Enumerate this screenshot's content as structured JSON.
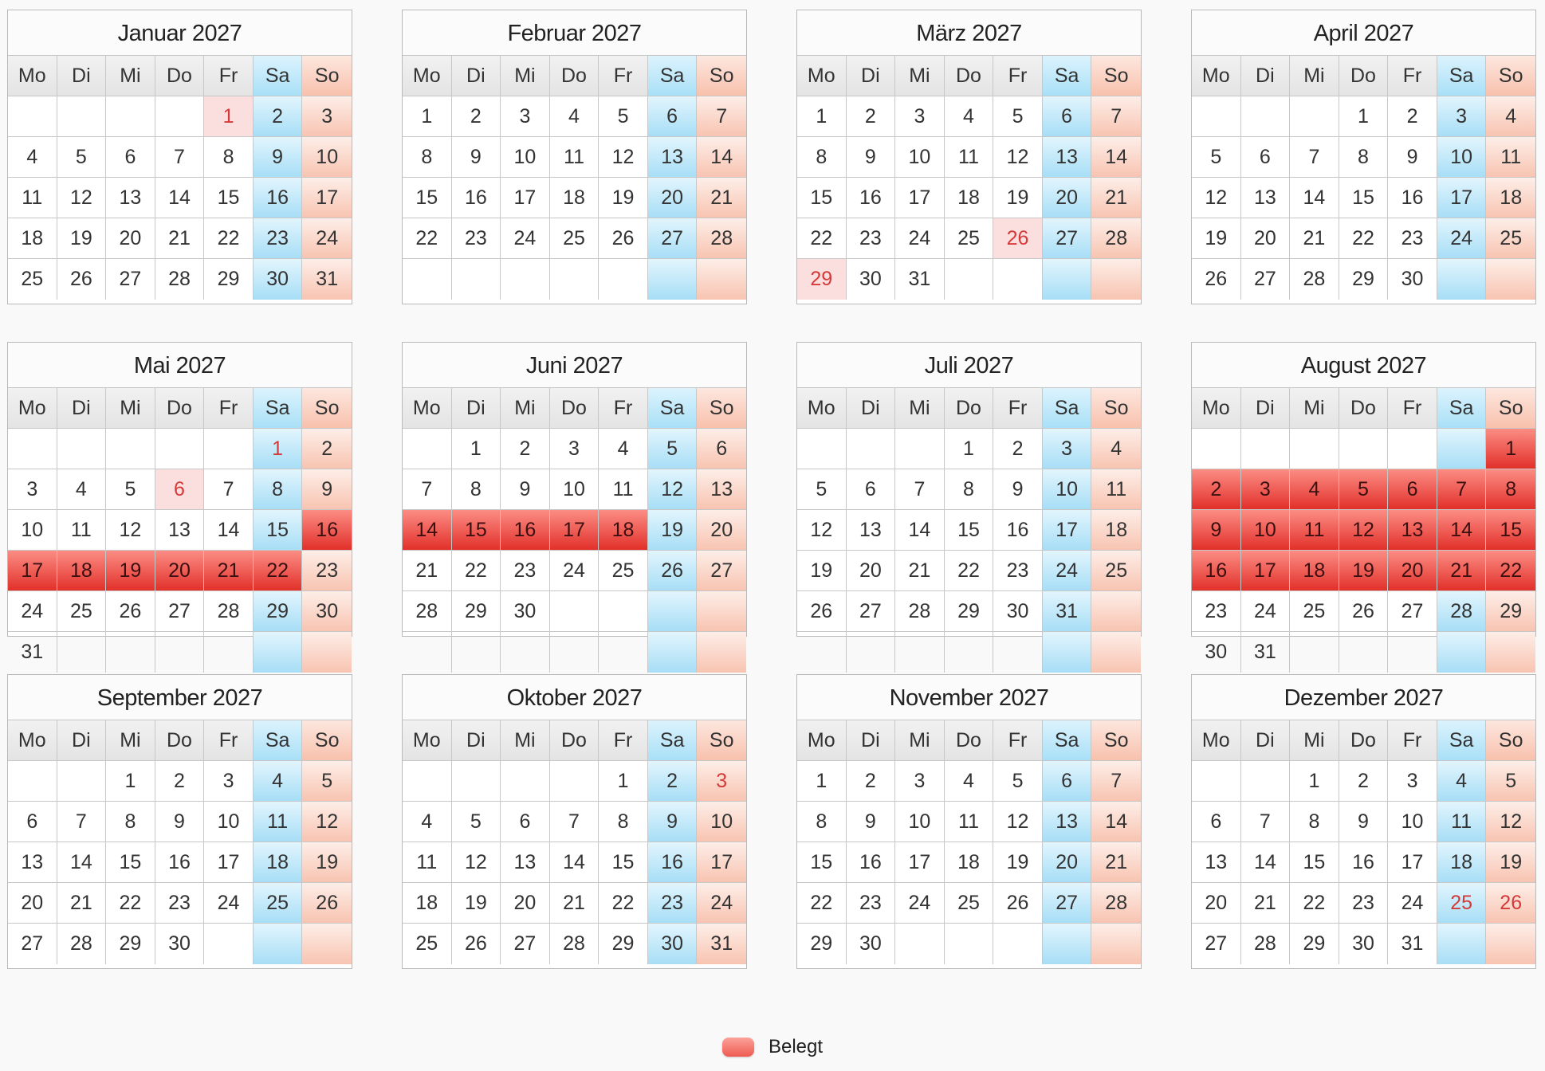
{
  "weekday_labels": [
    "Mo",
    "Di",
    "Mi",
    "Do",
    "Fr",
    "Sa",
    "So"
  ],
  "colors": {
    "saturday": "#a9e0f7",
    "sunday": "#f8c1ac",
    "booked": "#e2302a",
    "holiday_text": "#d43a3a",
    "holiday_bg": "#fbdede"
  },
  "months": [
    {
      "title": "Januar 2027",
      "offset": 4,
      "days": 31,
      "weeks": 5,
      "holidays": [
        1
      ],
      "booked": []
    },
    {
      "title": "Februar 2027",
      "offset": 0,
      "days": 28,
      "weeks": 5,
      "holidays": [],
      "booked": []
    },
    {
      "title": "März 2027",
      "offset": 0,
      "days": 31,
      "weeks": 5,
      "holidays": [
        26,
        29
      ],
      "booked": []
    },
    {
      "title": "April 2027",
      "offset": 3,
      "days": 30,
      "weeks": 5,
      "holidays": [],
      "booked": []
    },
    {
      "title": "Mai 2027",
      "offset": 5,
      "days": 31,
      "weeks": 6,
      "holidays": [
        1,
        6,
        17
      ],
      "booked": [
        16,
        17,
        18,
        19,
        20,
        21,
        22
      ]
    },
    {
      "title": "Juni 2027",
      "offset": 1,
      "days": 30,
      "weeks": 6,
      "holidays": [],
      "booked": [
        14,
        15,
        16,
        17,
        18
      ]
    },
    {
      "title": "Juli 2027",
      "offset": 3,
      "days": 31,
      "weeks": 6,
      "holidays": [],
      "booked": []
    },
    {
      "title": "August 2027",
      "offset": 6,
      "days": 31,
      "weeks": 6,
      "holidays": [],
      "booked": [
        1,
        2,
        3,
        4,
        5,
        6,
        7,
        8,
        9,
        10,
        11,
        12,
        13,
        14,
        15,
        16,
        17,
        18,
        19,
        20,
        21,
        22
      ]
    },
    {
      "title": "September 2027",
      "offset": 2,
      "days": 30,
      "weeks": 5,
      "holidays": [],
      "booked": []
    },
    {
      "title": "Oktober 2027",
      "offset": 4,
      "days": 31,
      "weeks": 5,
      "holidays": [
        3
      ],
      "booked": []
    },
    {
      "title": "November 2027",
      "offset": 0,
      "days": 30,
      "weeks": 5,
      "holidays": [],
      "booked": []
    },
    {
      "title": "Dezember 2027",
      "offset": 2,
      "days": 31,
      "weeks": 5,
      "holidays": [
        25,
        26
      ],
      "booked": []
    }
  ],
  "legend": {
    "label": "Belegt"
  }
}
